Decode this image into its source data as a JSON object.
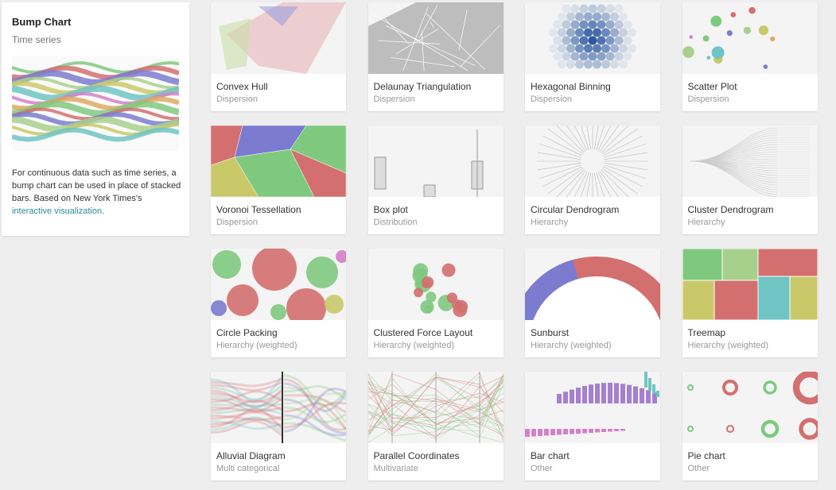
{
  "sidebar": {
    "title": "Bump Chart",
    "subtitle": "Time series",
    "description": "For continuous data such as time series, a bump chart can be used in place of stacked bars. Based on New York Times's",
    "link": "interactive visualization."
  },
  "charts": [
    {
      "name": "Convex Hull",
      "category": "Dispersion"
    },
    {
      "name": "Delaunay Triangulation",
      "category": "Dispersion"
    },
    {
      "name": "Hexagonal Binning",
      "category": "Dispersion"
    },
    {
      "name": "Scatter Plot",
      "category": "Dispersion"
    },
    {
      "name": "Voronoi Tessellation",
      "category": "Dispersion"
    },
    {
      "name": "Box plot",
      "category": "Distribution"
    },
    {
      "name": "Circular Dendrogram",
      "category": "Hierarchy"
    },
    {
      "name": "Cluster Dendrogram",
      "category": "Hierarchy"
    },
    {
      "name": "Circle Packing",
      "category": "Hierarchy (weighted)"
    },
    {
      "name": "Clustered Force Layout",
      "category": "Hierarchy (weighted)"
    },
    {
      "name": "Sunburst",
      "category": "Hierarchy (weighted)"
    },
    {
      "name": "Treemap",
      "category": "Hierarchy (weighted)"
    },
    {
      "name": "Alluvial Diagram",
      "category": "Multi categorical"
    },
    {
      "name": "Parallel Coordinates",
      "category": "Multivariate"
    },
    {
      "name": "Bar chart",
      "category": "Other"
    },
    {
      "name": "Pie chart",
      "category": "Other"
    }
  ]
}
